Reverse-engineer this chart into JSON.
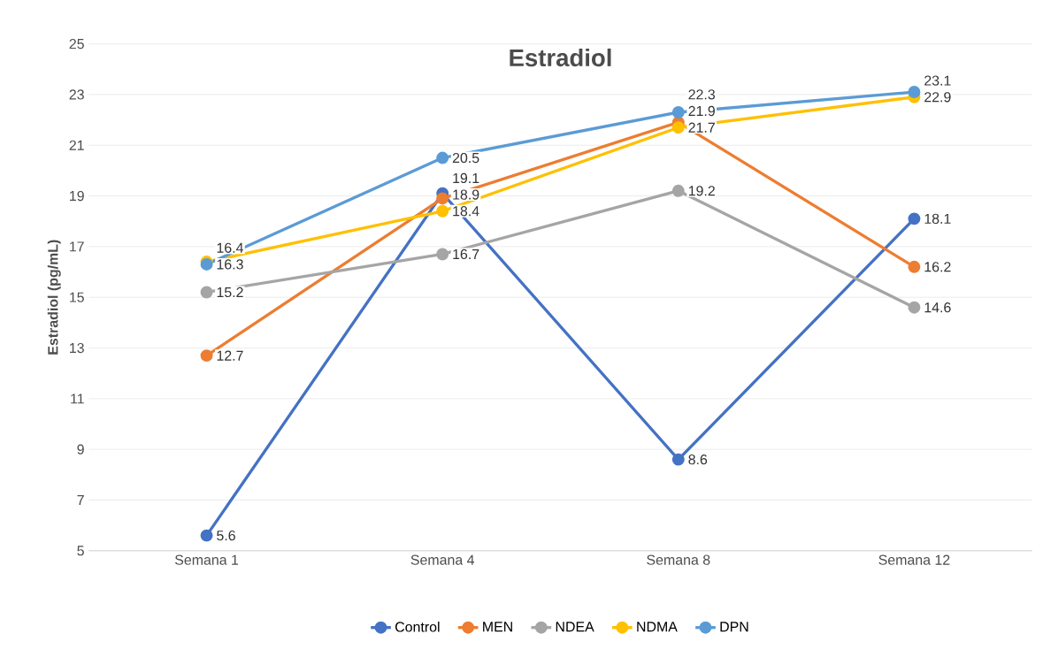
{
  "chart_data": {
    "type": "line",
    "title": "Estradiol",
    "ylabel": "Estradiol (pg/mL)",
    "categories": [
      "Semana 1",
      "Semana 4",
      "Semana 8",
      "Semana 12"
    ],
    "series": [
      {
        "name": "Control",
        "color": "#4472c4",
        "values": [
          5.6,
          19.1,
          8.6,
          18.1
        ]
      },
      {
        "name": "MEN",
        "color": "#ed7d31",
        "values": [
          12.7,
          18.9,
          21.9,
          16.2
        ]
      },
      {
        "name": "NDEA",
        "color": "#a5a5a5",
        "values": [
          15.2,
          16.7,
          19.2,
          14.6
        ]
      },
      {
        "name": "NDMA",
        "color": "#ffc000",
        "values": [
          16.4,
          18.4,
          21.7,
          22.9
        ]
      },
      {
        "name": "DPN",
        "color": "#5b9bd5",
        "values": [
          16.3,
          20.5,
          22.3,
          23.1
        ]
      }
    ],
    "ylim": [
      5,
      25
    ],
    "yticks": [
      5,
      7,
      9,
      11,
      13,
      15,
      17,
      19,
      21,
      23,
      25
    ],
    "grid": "y",
    "legend": "bottom",
    "marker": "circle",
    "line_style": "solid",
    "data_labels": true
  }
}
